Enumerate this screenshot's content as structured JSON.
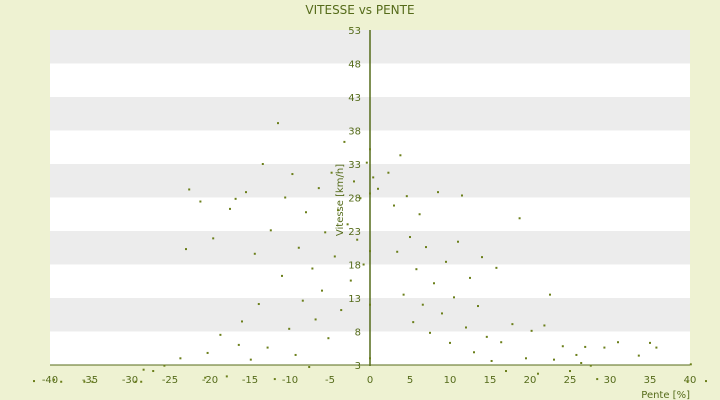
{
  "chart_data": {
    "type": "scatter",
    "title": "VITESSE vs PENTE",
    "xlabel": "Pente [%]",
    "ylabel": "Vitesse [km/h]",
    "xlim": [
      -40,
      40
    ],
    "ylim": [
      3,
      53
    ],
    "x_ticks": [
      -40,
      -35,
      -30,
      -25,
      -20,
      -15,
      -10,
      -5,
      0,
      5,
      10,
      15,
      20,
      25,
      30,
      35,
      40
    ],
    "y_ticks": [
      3,
      8,
      13,
      18,
      23,
      28,
      33,
      38,
      43,
      48,
      53
    ],
    "grid": "horizontal bands",
    "colors": {
      "points": "#6b7f1a",
      "axis": "#556b1a",
      "band_light": "#ffffff",
      "band_dark": "#ececec",
      "background": "#eef2d2"
    },
    "series": [
      {
        "values": [
          {
            "x": -42,
            "y": 0.6
          },
          {
            "x": -39.5,
            "y": 0.8
          },
          {
            "x": -38.6,
            "y": 0.5
          },
          {
            "x": -35.7,
            "y": 0.5
          },
          {
            "x": -34.7,
            "y": 0.5
          },
          {
            "x": -29.3,
            "y": 0.5
          },
          {
            "x": -28.6,
            "y": 0.5
          },
          {
            "x": -28.3,
            "y": 2.3
          },
          {
            "x": -27.1,
            "y": 2.1
          },
          {
            "x": -25.7,
            "y": 2.9
          },
          {
            "x": -23.7,
            "y": 4.0
          },
          {
            "x": -23.0,
            "y": 20.3
          },
          {
            "x": -22.6,
            "y": 29.2
          },
          {
            "x": -21.2,
            "y": 27.4
          },
          {
            "x": -20.6,
            "y": 1.1
          },
          {
            "x": -20.3,
            "y": 4.8
          },
          {
            "x": -19.6,
            "y": 21.9
          },
          {
            "x": -18.7,
            "y": 7.5
          },
          {
            "x": -17.9,
            "y": 1.3
          },
          {
            "x": -17.5,
            "y": 26.3
          },
          {
            "x": -16.8,
            "y": 27.8
          },
          {
            "x": -16.4,
            "y": 6.0
          },
          {
            "x": -16.0,
            "y": 9.5
          },
          {
            "x": -15.5,
            "y": 28.8
          },
          {
            "x": -14.9,
            "y": 3.8
          },
          {
            "x": -14.4,
            "y": 19.6
          },
          {
            "x": -13.9,
            "y": 12.1
          },
          {
            "x": -13.4,
            "y": 33.0
          },
          {
            "x": -12.8,
            "y": 5.6
          },
          {
            "x": -12.4,
            "y": 23.1
          },
          {
            "x": -11.9,
            "y": 0.9
          },
          {
            "x": -11.5,
            "y": 39.1
          },
          {
            "x": -11.0,
            "y": 16.3
          },
          {
            "x": -10.6,
            "y": 28.0
          },
          {
            "x": -10.1,
            "y": 8.4
          },
          {
            "x": -9.7,
            "y": 31.5
          },
          {
            "x": -9.3,
            "y": 4.5
          },
          {
            "x": -8.9,
            "y": 20.5
          },
          {
            "x": -8.4,
            "y": 12.6
          },
          {
            "x": -8.0,
            "y": 25.8
          },
          {
            "x": -7.6,
            "y": 2.7
          },
          {
            "x": -7.2,
            "y": 17.4
          },
          {
            "x": -6.8,
            "y": 9.8
          },
          {
            "x": -6.4,
            "y": 29.4
          },
          {
            "x": -6.0,
            "y": 14.1
          },
          {
            "x": -5.6,
            "y": 22.8
          },
          {
            "x": -5.2,
            "y": 7.0
          },
          {
            "x": -4.8,
            "y": 31.7
          },
          {
            "x": -4.4,
            "y": 19.2
          },
          {
            "x": -4.0,
            "y": 26.1
          },
          {
            "x": -3.6,
            "y": 11.2
          },
          {
            "x": -3.2,
            "y": 36.3
          },
          {
            "x": -2.8,
            "y": 24.0
          },
          {
            "x": -2.4,
            "y": 15.6
          },
          {
            "x": -2.0,
            "y": 30.4
          },
          {
            "x": -1.6,
            "y": 21.7
          },
          {
            "x": -1.2,
            "y": 27.9
          },
          {
            "x": -0.8,
            "y": 18.0
          },
          {
            "x": -0.4,
            "y": 33.2
          },
          {
            "x": 0.0,
            "y": 35.2
          },
          {
            "x": 0.0,
            "y": 4.0
          },
          {
            "x": 0.0,
            "y": 12.0
          },
          {
            "x": 0.0,
            "y": 20.0
          },
          {
            "x": 0.0,
            "y": 28.6
          },
          {
            "x": 0.4,
            "y": 31.0
          },
          {
            "x": 1.0,
            "y": 29.3
          },
          {
            "x": 2.3,
            "y": 31.7
          },
          {
            "x": 3.0,
            "y": 26.8
          },
          {
            "x": 3.4,
            "y": 19.9
          },
          {
            "x": 3.8,
            "y": 34.3
          },
          {
            "x": 4.2,
            "y": 13.5
          },
          {
            "x": 4.6,
            "y": 28.2
          },
          {
            "x": 5.0,
            "y": 22.1
          },
          {
            "x": 5.4,
            "y": 9.4
          },
          {
            "x": 5.8,
            "y": 17.3
          },
          {
            "x": 6.2,
            "y": 25.5
          },
          {
            "x": 6.6,
            "y": 12.0
          },
          {
            "x": 7.0,
            "y": 20.6
          },
          {
            "x": 7.5,
            "y": 7.8
          },
          {
            "x": 8.0,
            "y": 15.2
          },
          {
            "x": 8.5,
            "y": 28.8
          },
          {
            "x": 9.0,
            "y": 10.7
          },
          {
            "x": 9.5,
            "y": 18.4
          },
          {
            "x": 10.0,
            "y": 6.3
          },
          {
            "x": 10.5,
            "y": 13.1
          },
          {
            "x": 11.0,
            "y": 21.4
          },
          {
            "x": 11.5,
            "y": 28.3
          },
          {
            "x": 12.0,
            "y": 8.6
          },
          {
            "x": 12.5,
            "y": 16.0
          },
          {
            "x": 13.0,
            "y": 4.9
          },
          {
            "x": 13.5,
            "y": 11.8
          },
          {
            "x": 14.0,
            "y": 19.1
          },
          {
            "x": 14.6,
            "y": 7.2
          },
          {
            "x": 15.2,
            "y": 3.6
          },
          {
            "x": 15.8,
            "y": 17.5
          },
          {
            "x": 16.4,
            "y": 6.4
          },
          {
            "x": 17.0,
            "y": 2.1
          },
          {
            "x": 17.8,
            "y": 9.1
          },
          {
            "x": 18.7,
            "y": 24.9
          },
          {
            "x": 19.5,
            "y": 4.0
          },
          {
            "x": 20.2,
            "y": 8.1
          },
          {
            "x": 21.0,
            "y": 1.7
          },
          {
            "x": 21.8,
            "y": 8.9
          },
          {
            "x": 22.5,
            "y": 13.5
          },
          {
            "x": 23.0,
            "y": 3.8
          },
          {
            "x": 24.1,
            "y": 5.8
          },
          {
            "x": 25.0,
            "y": 2.1
          },
          {
            "x": 25.8,
            "y": 4.5
          },
          {
            "x": 26.4,
            "y": 3.3
          },
          {
            "x": 26.9,
            "y": 5.7
          },
          {
            "x": 27.6,
            "y": 2.9
          },
          {
            "x": 28.4,
            "y": 0.9
          },
          {
            "x": 29.3,
            "y": 5.6
          },
          {
            "x": 31.0,
            "y": 6.4
          },
          {
            "x": 33.6,
            "y": 4.4
          },
          {
            "x": 35.0,
            "y": 6.3
          },
          {
            "x": 35.8,
            "y": 5.6
          },
          {
            "x": 39.7,
            "y": 0.5
          },
          {
            "x": 40.1,
            "y": 3.1
          },
          {
            "x": 42.0,
            "y": 0.6
          }
        ]
      }
    ]
  }
}
